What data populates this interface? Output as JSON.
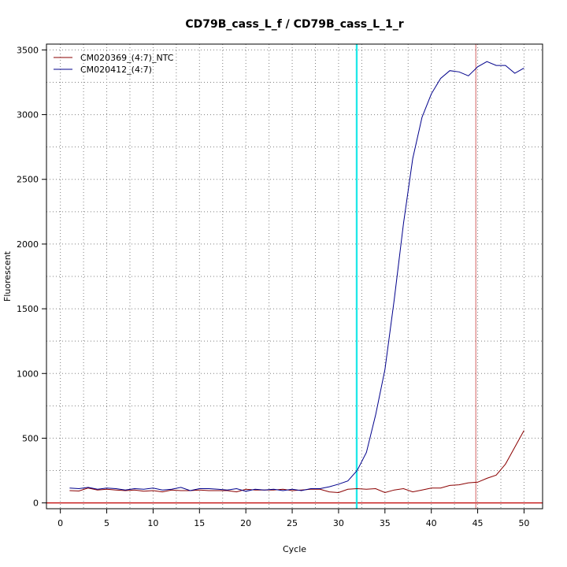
{
  "chart_data": {
    "type": "line",
    "title": "CD79B_cass_L_f / CD79B_cass_L_1_r",
    "xlabel": "Cycle",
    "ylabel": "Fluorescent",
    "xlim": [
      -1.5,
      52
    ],
    "ylim": [
      -45,
      3545
    ],
    "x_ticks": [
      0,
      5,
      10,
      15,
      20,
      25,
      30,
      35,
      40,
      45,
      50
    ],
    "y_ticks": [
      0,
      500,
      1000,
      1500,
      2000,
      2500,
      3000,
      3500
    ],
    "grid": true,
    "legend_position": "top-left",
    "colors": {
      "ntc": "#8b0000",
      "sample": "#00008b",
      "threshold": "#c00000",
      "vline_cyan": "#00e5e5",
      "vline_red": "#d06060",
      "grid": "#808080"
    },
    "threshold_y": 0,
    "vlines": [
      {
        "x": 31.9,
        "color": "#00e5e5"
      },
      {
        "x": 32.0,
        "color": "#00e5e5"
      },
      {
        "x": 44.8,
        "color": "#d06060"
      }
    ],
    "x": [
      1,
      2,
      3,
      4,
      5,
      6,
      7,
      8,
      9,
      10,
      11,
      12,
      13,
      14,
      15,
      16,
      17,
      18,
      19,
      20,
      21,
      22,
      23,
      24,
      25,
      26,
      27,
      28,
      29,
      30,
      31,
      32,
      33,
      34,
      35,
      36,
      37,
      38,
      39,
      40,
      41,
      42,
      43,
      44,
      45,
      46,
      47,
      48,
      49,
      50
    ],
    "series": [
      {
        "name": "CM020369_(4:7)_NTC",
        "color": "#8b0000",
        "values": [
          95,
          92,
          115,
          100,
          105,
          100,
          95,
          100,
          90,
          95,
          85,
          100,
          95,
          95,
          100,
          95,
          95,
          95,
          85,
          105,
          100,
          100,
          100,
          105,
          95,
          100,
          105,
          105,
          85,
          80,
          105,
          110,
          105,
          110,
          80,
          100,
          110,
          85,
          100,
          115,
          115,
          135,
          140,
          155,
          160,
          190,
          215,
          300,
          430,
          560
        ]
      },
      {
        "name": "CM020412_(4:7)",
        "color": "#00008b",
        "values": [
          115,
          110,
          120,
          105,
          115,
          110,
          100,
          110,
          105,
          115,
          100,
          105,
          120,
          95,
          110,
          110,
          105,
          100,
          110,
          90,
          105,
          100,
          105,
          95,
          105,
          95,
          110,
          110,
          125,
          145,
          170,
          250,
          390,
          680,
          1030,
          1570,
          2160,
          2660,
          2980,
          3160,
          3280,
          3340,
          3330,
          3300,
          3370,
          3410,
          3380,
          3380,
          3320,
          3360
        ]
      }
    ]
  }
}
